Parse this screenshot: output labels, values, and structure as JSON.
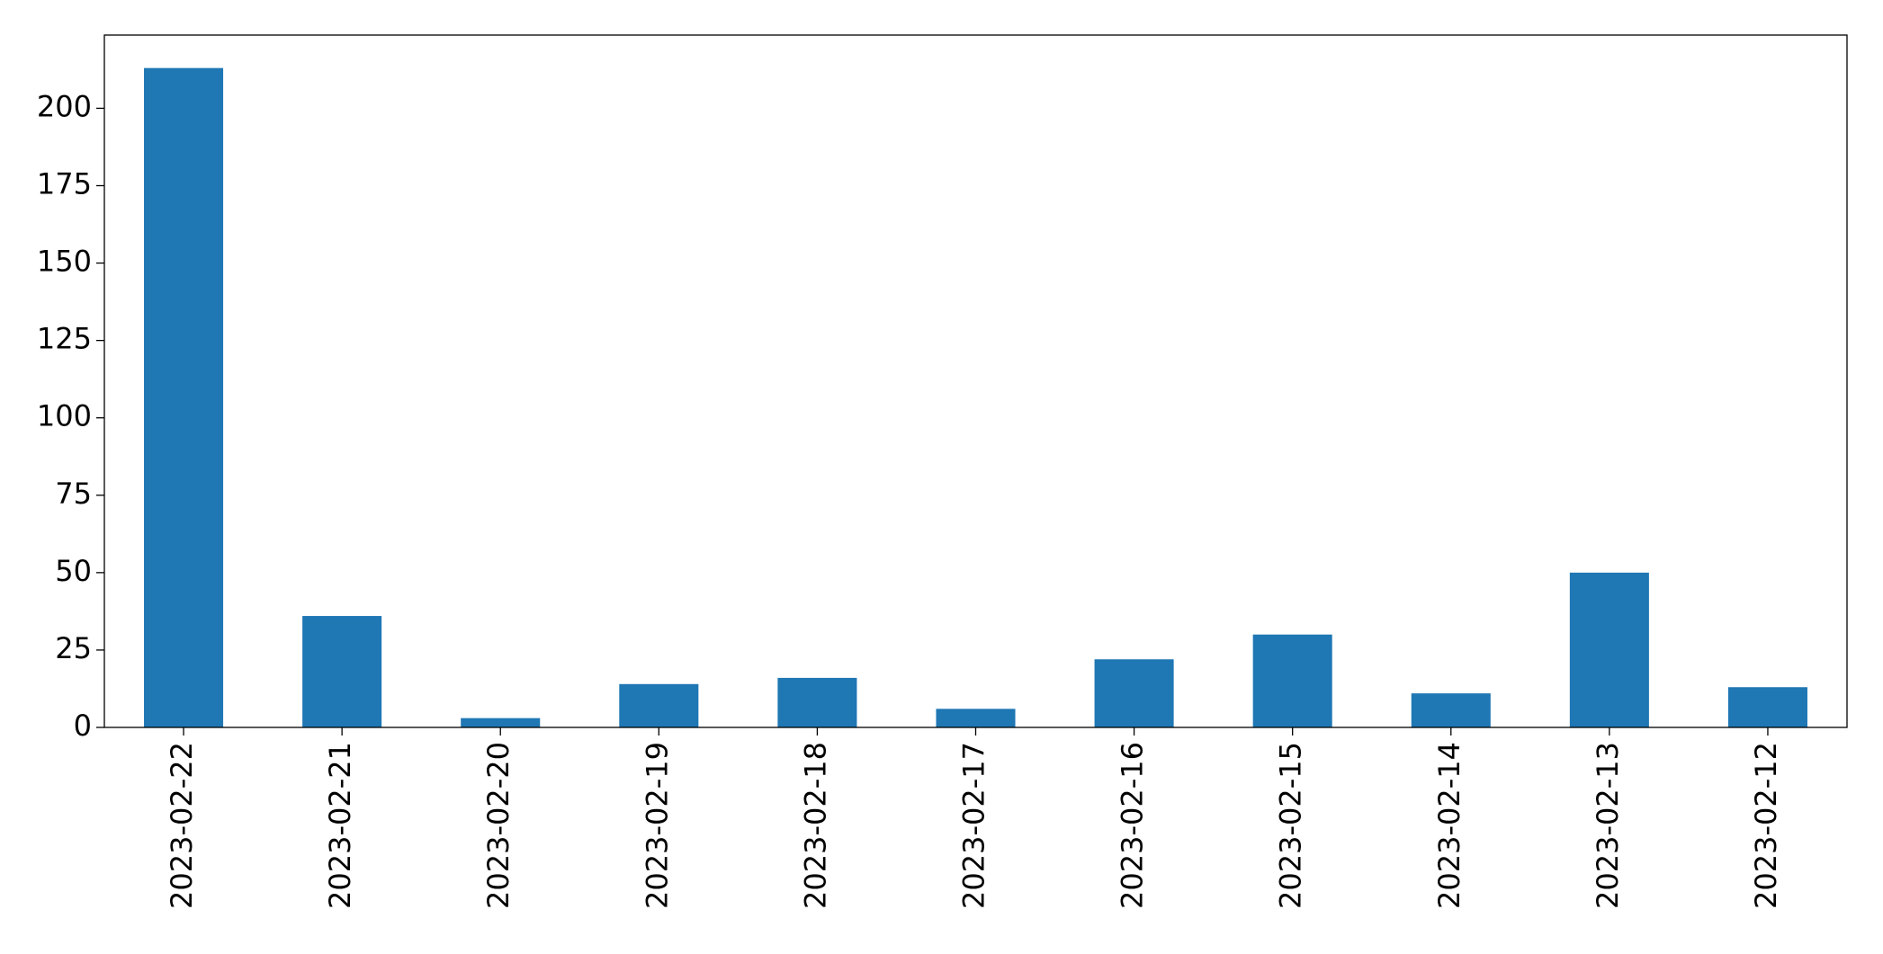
{
  "chart_data": {
    "type": "bar",
    "categories": [
      "2023-02-22",
      "2023-02-21",
      "2023-02-20",
      "2023-02-19",
      "2023-02-18",
      "2023-02-17",
      "2023-02-16",
      "2023-02-15",
      "2023-02-14",
      "2023-02-13",
      "2023-02-12"
    ],
    "values": [
      213,
      36,
      3,
      14,
      16,
      6,
      22,
      30,
      11,
      50,
      13
    ],
    "color": "#1f77b4",
    "ylim": [
      0,
      223.65
    ],
    "yticks": [
      0,
      25,
      50,
      75,
      100,
      125,
      150,
      175,
      200
    ],
    "grid": false
  }
}
